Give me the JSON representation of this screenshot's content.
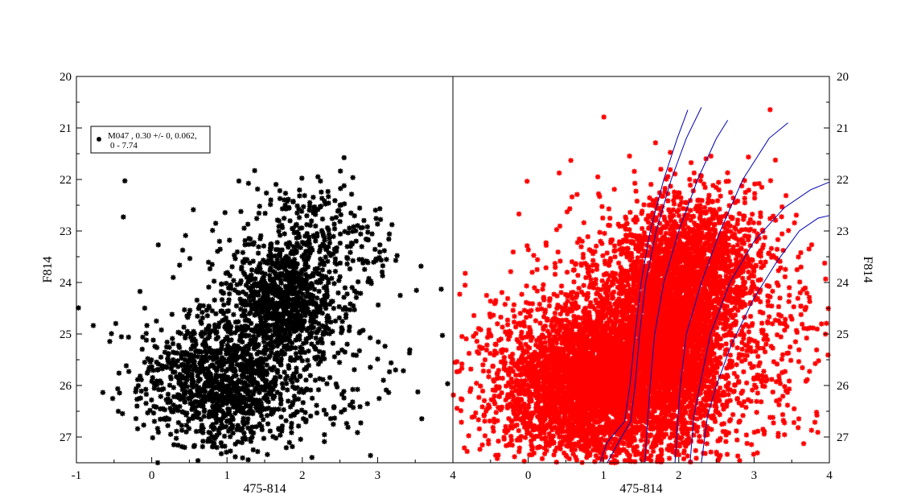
{
  "chart_data": [
    {
      "type": "scatter",
      "panel": "left",
      "xlabel": "475-814",
      "ylabel": "F814",
      "xlim": [
        -1,
        4
      ],
      "ylim": [
        27.5,
        20
      ],
      "y_inverted": true,
      "xticks": [
        "-1",
        "0",
        "1",
        "2",
        "3",
        "4"
      ],
      "yticks": [
        "20",
        "21",
        "22",
        "23",
        "24",
        "25",
        "26",
        "27"
      ],
      "grid": false,
      "legend": {
        "position": "top-left",
        "lines": [
          "M047 , 0.30 +/- 0, 0.062,",
          "0 - 7.74"
        ]
      },
      "series": [
        {
          "marker": "star",
          "color": "#000000",
          "point_count_approx": 2500,
          "density_components": [
            {
              "x": 1.0,
              "y": 25.9,
              "sx": 0.55,
              "sy": 0.65,
              "weight": 0.45
            },
            {
              "x": 1.75,
              "y": 24.4,
              "sx": 0.35,
              "sy": 0.55,
              "weight": 0.3
            },
            {
              "x": 2.2,
              "y": 23.2,
              "sx": 0.45,
              "sy": 0.6,
              "weight": 0.12
            },
            {
              "x": 1.6,
              "y": 25.4,
              "sx": 1.0,
              "sy": 1.3,
              "weight": 0.13
            }
          ]
        }
      ]
    },
    {
      "type": "scatter",
      "panel": "right",
      "xlabel": "475-814",
      "ylabel": "F814",
      "xlim": [
        -1,
        4
      ],
      "ylim": [
        27.5,
        20
      ],
      "y_inverted": true,
      "xticks": [
        "0",
        "1",
        "2",
        "3",
        "4"
      ],
      "yticks": [
        "20",
        "21",
        "22",
        "23",
        "24",
        "25",
        "26",
        "27"
      ],
      "grid": false,
      "series": [
        {
          "marker": "star",
          "color": "#ff0000",
          "point_count_approx": 9000,
          "density_components": [
            {
              "x": 0.85,
              "y": 26.0,
              "sx": 0.6,
              "sy": 0.7,
              "weight": 0.38
            },
            {
              "x": 1.8,
              "y": 25.0,
              "sx": 0.4,
              "sy": 1.0,
              "weight": 0.32
            },
            {
              "x": 2.3,
              "y": 23.6,
              "sx": 0.45,
              "sy": 0.7,
              "weight": 0.12
            },
            {
              "x": 1.7,
              "y": 25.2,
              "sx": 1.2,
              "sy": 1.3,
              "weight": 0.18
            }
          ]
        }
      ],
      "isochrones": {
        "color": "#0000b4",
        "curves": [
          [
            [
              0.95,
              27.5
            ],
            [
              1.05,
              27.1
            ],
            [
              1.28,
              26.7
            ],
            [
              1.35,
              26.0
            ],
            [
              1.42,
              25.0
            ],
            [
              1.5,
              24.0
            ],
            [
              1.62,
              23.0
            ],
            [
              1.8,
              22.0
            ],
            [
              1.98,
              21.2
            ],
            [
              2.12,
              20.65
            ]
          ],
          [
            [
              1.05,
              27.5
            ],
            [
              1.2,
              27.1
            ],
            [
              1.36,
              26.7
            ],
            [
              1.42,
              26.0
            ],
            [
              1.48,
              25.0
            ],
            [
              1.56,
              24.0
            ],
            [
              1.7,
              23.0
            ],
            [
              1.9,
              22.0
            ],
            [
              2.1,
              21.2
            ],
            [
              2.3,
              20.6
            ]
          ],
          [
            [
              1.55,
              27.5
            ],
            [
              1.58,
              26.8
            ],
            [
              1.62,
              26.0
            ],
            [
              1.68,
              25.0
            ],
            [
              1.8,
              24.0
            ],
            [
              2.0,
              23.0
            ],
            [
              2.25,
              22.0
            ],
            [
              2.5,
              21.2
            ],
            [
              2.65,
              20.85
            ]
          ],
          [
            [
              1.95,
              27.5
            ],
            [
              1.98,
              26.8
            ],
            [
              2.02,
              26.0
            ],
            [
              2.1,
              25.0
            ],
            [
              2.3,
              24.0
            ],
            [
              2.55,
              23.0
            ],
            [
              2.85,
              22.0
            ],
            [
              3.2,
              21.2
            ],
            [
              3.45,
              20.9
            ]
          ],
          [
            [
              2.15,
              27.5
            ],
            [
              2.2,
              26.6
            ],
            [
              2.28,
              26.0
            ],
            [
              2.42,
              25.0
            ],
            [
              2.68,
              24.0
            ],
            [
              3.0,
              23.2
            ],
            [
              3.4,
              22.55
            ],
            [
              3.75,
              22.2
            ],
            [
              4.0,
              22.05
            ]
          ],
          [
            [
              2.3,
              27.5
            ],
            [
              2.38,
              26.6
            ],
            [
              2.5,
              26.0
            ],
            [
              2.7,
              25.2
            ],
            [
              3.0,
              24.3
            ],
            [
              3.3,
              23.6
            ],
            [
              3.6,
              23.0
            ],
            [
              3.85,
              22.75
            ],
            [
              4.0,
              22.7
            ]
          ]
        ]
      }
    }
  ]
}
